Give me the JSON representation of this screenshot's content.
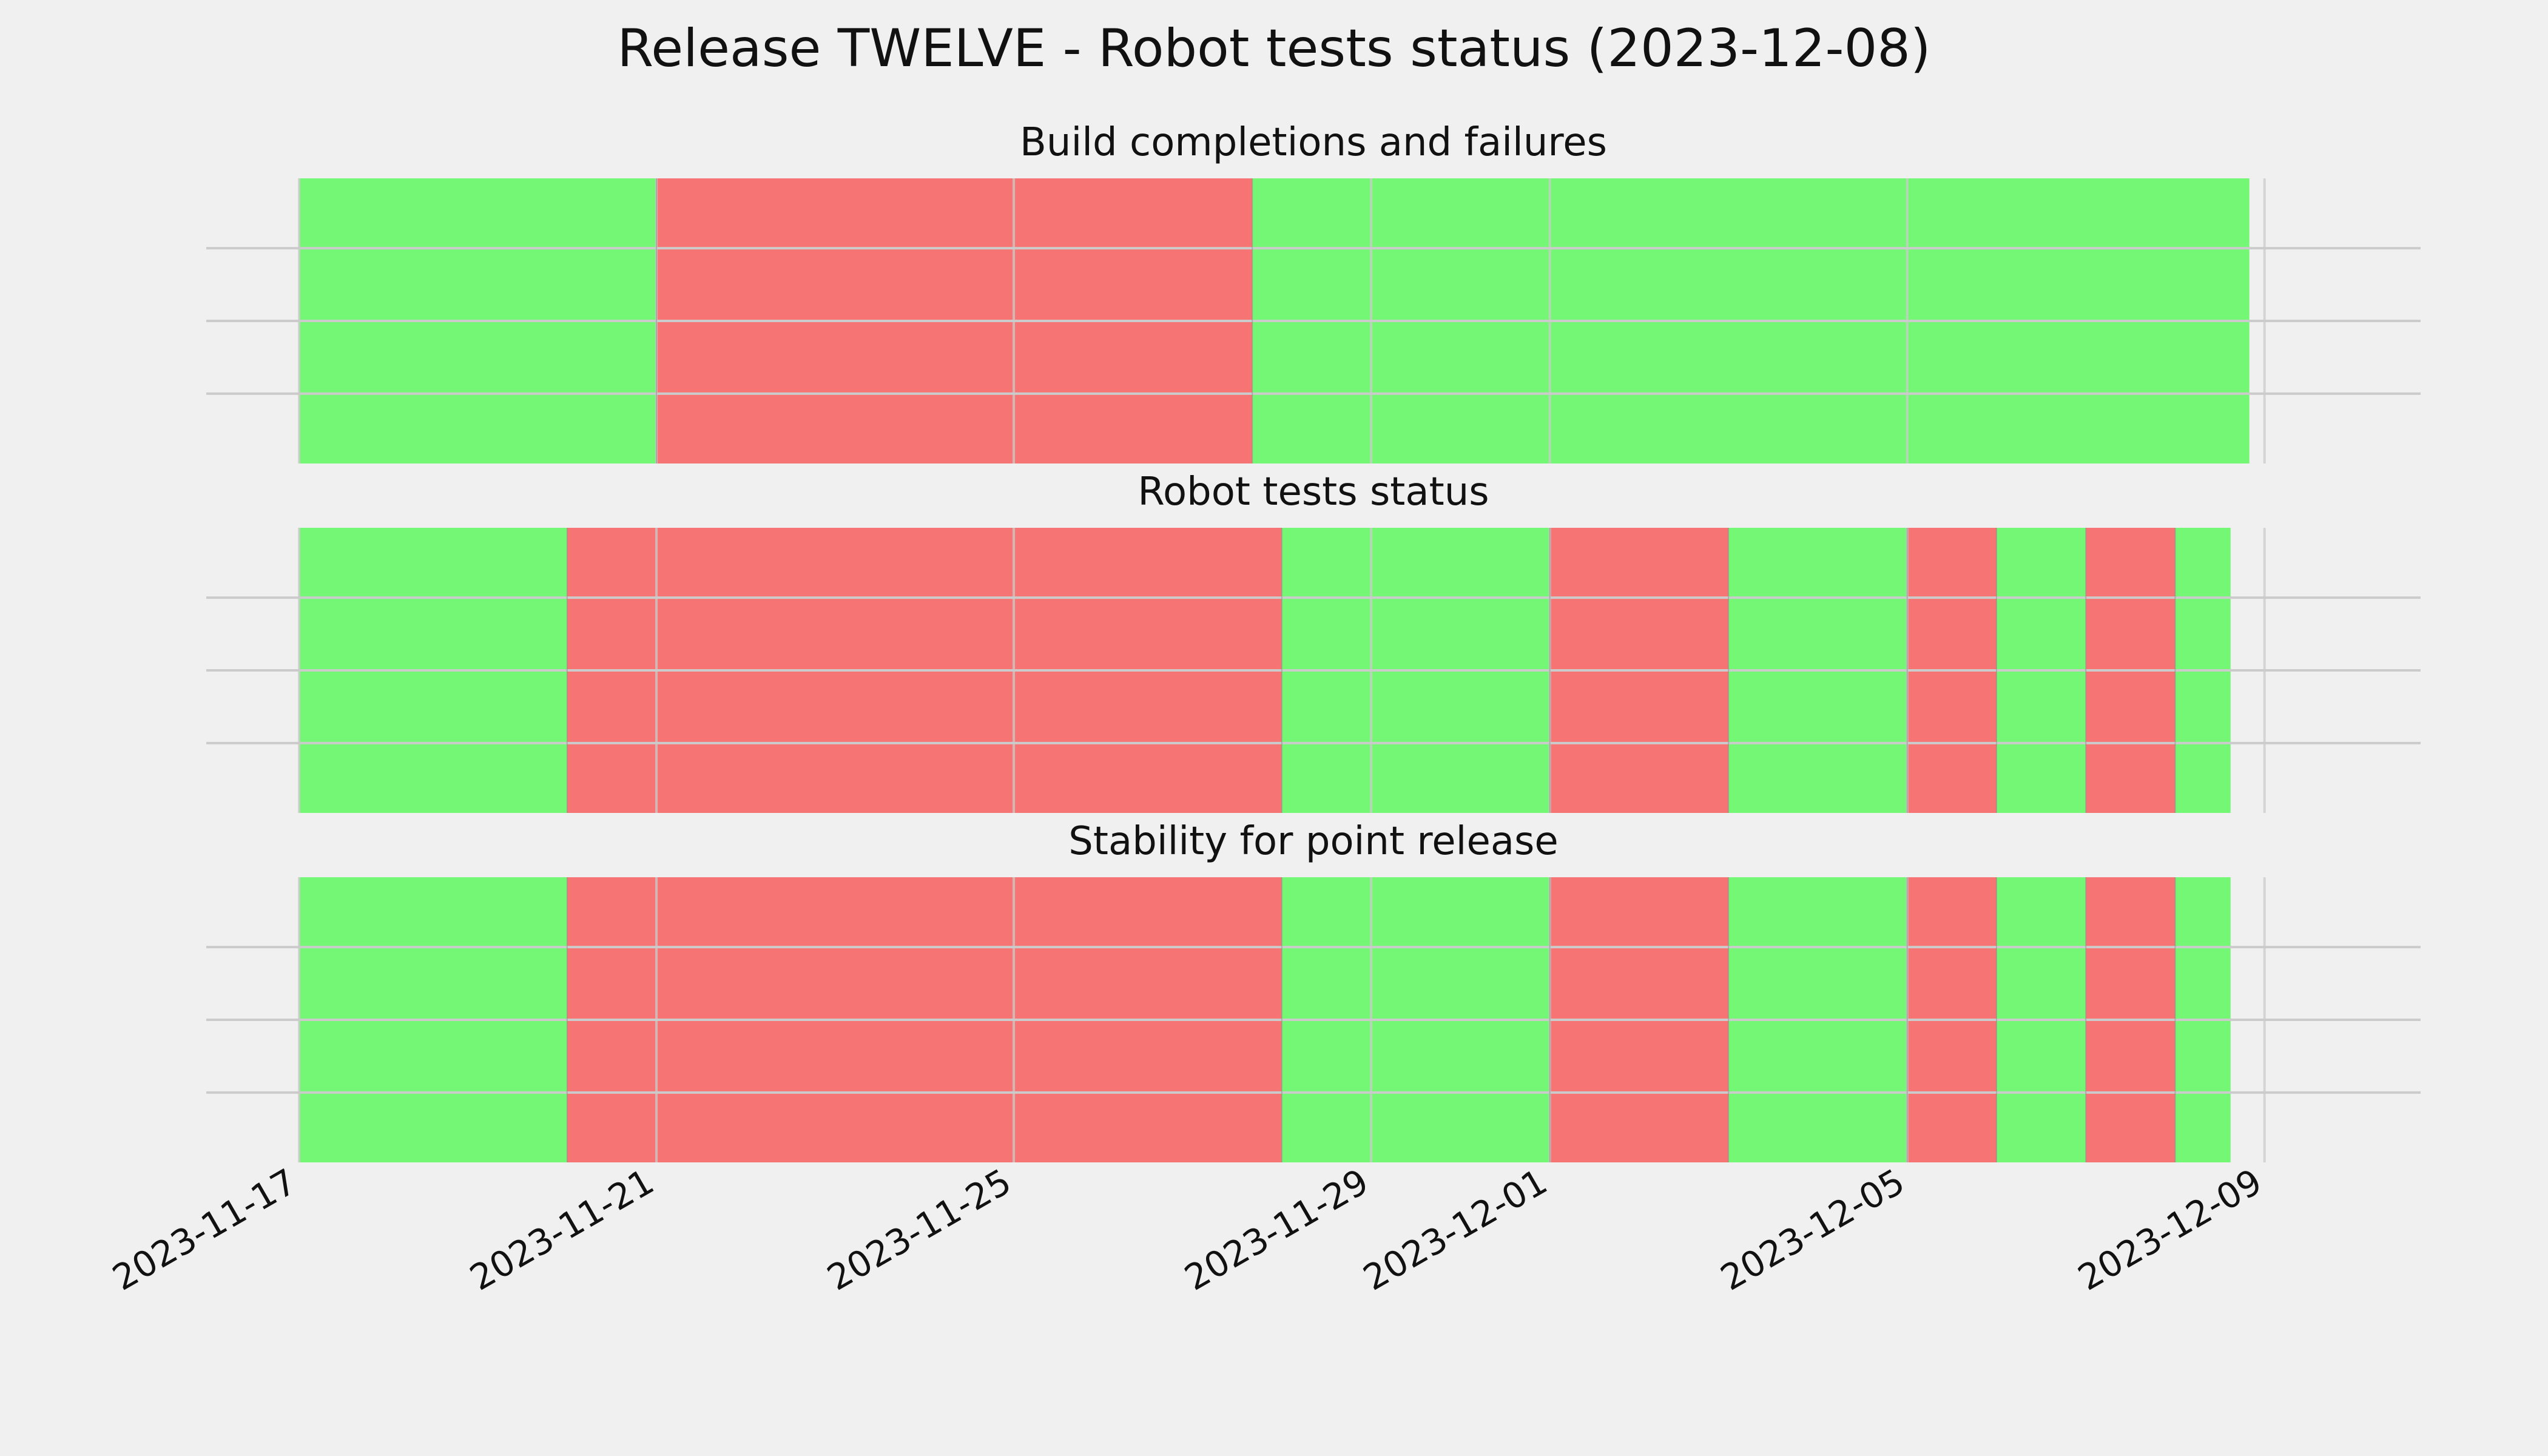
{
  "chart_data": {
    "type": "timeline",
    "title": "Release TWELVE - Robot tests status (2023-12-08)",
    "xlim": [
      "2023-11-17",
      "2023-12-10"
    ],
    "grid": true,
    "colors": {
      "pass": "#74f774",
      "fail": "#f77474",
      "background": "#f0f0f0",
      "grid": "#cbcbcb"
    },
    "x_ticks": [
      "2023-11-17",
      "2023-11-21",
      "2023-11-25",
      "2023-11-29",
      "2023-12-01",
      "2023-12-05",
      "2023-12-09"
    ],
    "panels": [
      {
        "title": "Build completions and failures",
        "segments": [
          {
            "start": "2023-11-17",
            "end": "2023-11-21",
            "status": "pass"
          },
          {
            "start": "2023-11-21",
            "end": "2023-11-27.67",
            "status": "fail"
          },
          {
            "start": "2023-11-27.67",
            "end": "2023-12-08.83",
            "status": "pass"
          }
        ]
      },
      {
        "title": "Robot tests status",
        "segments": [
          {
            "start": "2023-11-17",
            "end": "2023-11-20",
            "status": "pass"
          },
          {
            "start": "2023-11-20",
            "end": "2023-11-28",
            "status": "fail"
          },
          {
            "start": "2023-11-28",
            "end": "2023-12-01",
            "status": "pass"
          },
          {
            "start": "2023-12-01",
            "end": "2023-12-03",
            "status": "fail"
          },
          {
            "start": "2023-12-03",
            "end": "2023-12-05",
            "status": "pass"
          },
          {
            "start": "2023-12-05",
            "end": "2023-12-06",
            "status": "fail"
          },
          {
            "start": "2023-12-06",
            "end": "2023-12-07",
            "status": "pass"
          },
          {
            "start": "2023-12-07",
            "end": "2023-12-08",
            "status": "fail"
          },
          {
            "start": "2023-12-08",
            "end": "2023-12-08.62",
            "status": "pass"
          }
        ]
      },
      {
        "title": "Stability for point release",
        "segments": [
          {
            "start": "2023-11-17",
            "end": "2023-11-20",
            "status": "pass"
          },
          {
            "start": "2023-11-20",
            "end": "2023-11-28",
            "status": "fail"
          },
          {
            "start": "2023-11-28",
            "end": "2023-12-01",
            "status": "pass"
          },
          {
            "start": "2023-12-01",
            "end": "2023-12-03",
            "status": "fail"
          },
          {
            "start": "2023-12-03",
            "end": "2023-12-05",
            "status": "pass"
          },
          {
            "start": "2023-12-05",
            "end": "2023-12-06",
            "status": "fail"
          },
          {
            "start": "2023-12-06",
            "end": "2023-12-07",
            "status": "pass"
          },
          {
            "start": "2023-12-07",
            "end": "2023-12-08",
            "status": "fail"
          },
          {
            "start": "2023-12-08",
            "end": "2023-12-08.62",
            "status": "pass"
          }
        ]
      }
    ]
  }
}
